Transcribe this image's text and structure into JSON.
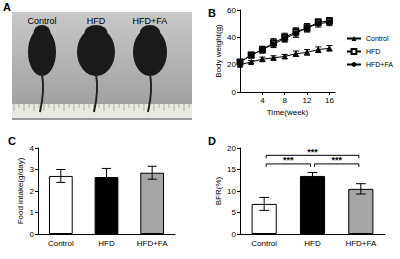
{
  "photo": {
    "panel": "A",
    "labels": [
      "Control",
      "HFD",
      "HFD+FA"
    ]
  },
  "chart_data": [
    {
      "type": "line",
      "title": "B",
      "x_label": "Time(week)",
      "y_label": "Body weight(g)",
      "x": [
        0,
        2,
        4,
        6,
        8,
        10,
        12,
        14,
        16
      ],
      "series": [
        {
          "name": "Control",
          "color": "#000000",
          "marker": "triangle",
          "values": [
            20,
            22,
            24,
            25,
            26,
            28,
            29,
            31,
            32
          ],
          "errors": [
            1,
            1,
            1.5,
            1.5,
            1.5,
            2,
            2,
            2,
            2
          ]
        },
        {
          "name": "HFD",
          "color": "#000000",
          "marker": "open-square",
          "values": [
            22,
            27,
            31,
            36,
            40,
            44,
            47,
            51,
            52
          ],
          "errors": [
            1.5,
            2,
            2.5,
            3,
            3,
            3,
            3,
            2.5,
            2.5
          ]
        },
        {
          "name": "HFD+FA",
          "color": "#000000",
          "marker": "circle",
          "values": [
            22,
            27,
            31,
            35,
            39,
            43,
            47,
            50,
            51
          ],
          "errors": [
            1.5,
            2,
            2,
            2.5,
            2.5,
            3,
            3,
            2.5,
            2.5
          ]
        }
      ],
      "xlim": [
        0,
        17
      ],
      "xticks": [
        4,
        8,
        12,
        16
      ],
      "ylim": [
        0,
        60
      ],
      "yticks": [
        0,
        20,
        40,
        60
      ],
      "grid": false,
      "legend": "right"
    },
    {
      "type": "bar",
      "title": "C",
      "y_label": "Food intake(g/day)",
      "categories": [
        "Control",
        "HFD",
        "HFD+FA"
      ],
      "values": [
        2.7,
        2.65,
        2.85
      ],
      "errors": [
        0.3,
        0.4,
        0.3
      ],
      "colors": [
        "#ffffff",
        "#000000",
        "#a6a6a6"
      ],
      "ylim": [
        0,
        4
      ],
      "yticks": [
        0,
        1,
        2,
        3,
        4
      ],
      "grid": false
    },
    {
      "type": "bar",
      "title": "D",
      "y_label": "BFR(%)",
      "categories": [
        "Control",
        "HFD",
        "HFD+FA"
      ],
      "values": [
        7,
        13.5,
        10.5
      ],
      "errors": [
        1.5,
        0.8,
        1.2
      ],
      "colors": [
        "#ffffff",
        "#000000",
        "#a6a6a6"
      ],
      "ylim": [
        0,
        20
      ],
      "yticks": [
        0,
        5,
        10,
        15,
        20
      ],
      "grid": false,
      "annotations": [
        {
          "text": "***",
          "categories": [
            "Control",
            "HFD"
          ]
        },
        {
          "text": "***",
          "categories": [
            "HFD",
            "HFD+FA"
          ]
        },
        {
          "text": "***",
          "categories": [
            "Control",
            "HFD+FA"
          ]
        }
      ]
    }
  ]
}
